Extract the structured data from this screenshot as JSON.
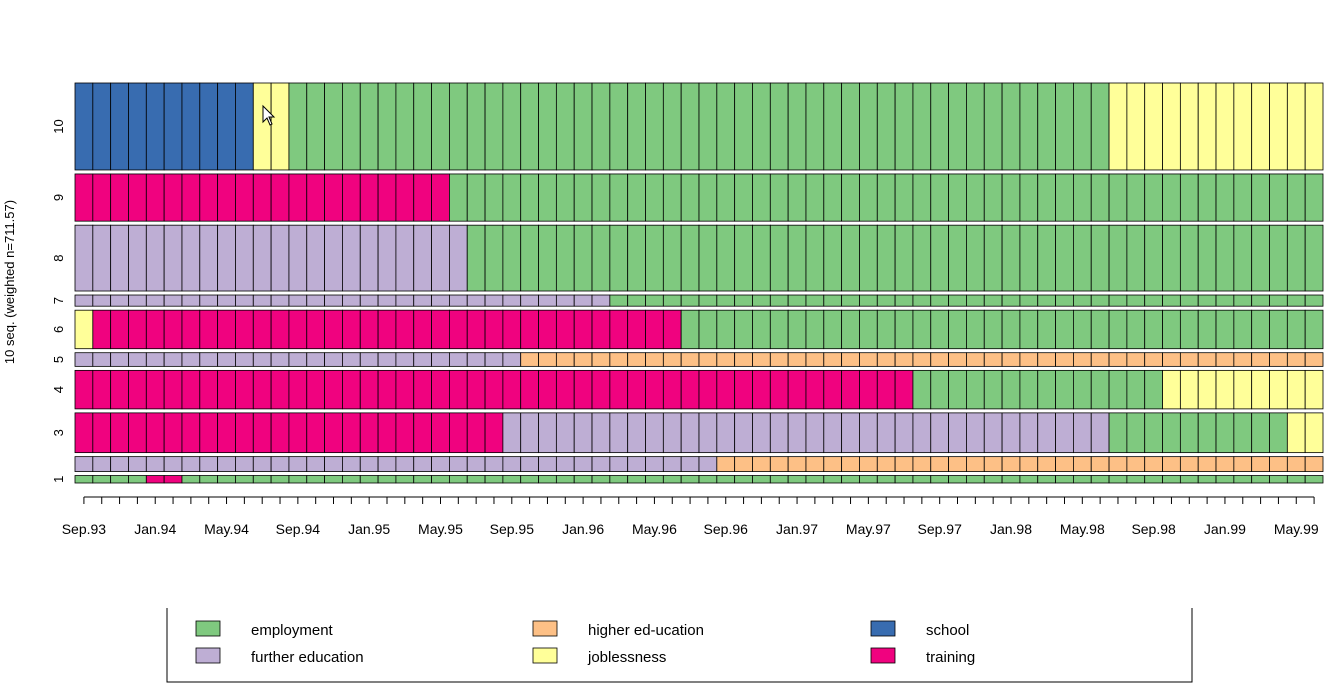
{
  "chart_data": {
    "type": "sequence-index-plot",
    "ylabel": "10 seq. (weighted n=711.57)",
    "x_tick_labels": [
      "Sep.93",
      "Jan.94",
      "May.94",
      "Sep.94",
      "Jan.95",
      "May.95",
      "Sep.95",
      "Jan.96",
      "May.96",
      "Sep.96",
      "Jan.97",
      "May.97",
      "Sep.97",
      "Jan.98",
      "May.98",
      "Sep.98",
      "Jan.99",
      "May.99"
    ],
    "n_months": 70,
    "states": [
      {
        "name": "employment",
        "color": "#7FC97F"
      },
      {
        "name": "further education",
        "color": "#BEAED4"
      },
      {
        "name": "higher ed-ucation",
        "color": "#FDC086"
      },
      {
        "name": "joblessness",
        "color": "#FFFF99"
      },
      {
        "name": "school",
        "color": "#386CB0"
      },
      {
        "name": "training",
        "color": "#F0027F"
      }
    ],
    "legend_order": [
      "employment",
      "further education",
      "higher ed-ucation",
      "joblessness",
      "school",
      "training"
    ],
    "legend_position": "bottom",
    "sequences": [
      {
        "label": "1",
        "weight": 6,
        "spells": [
          [
            "employment",
            4
          ],
          [
            "training",
            2
          ],
          [
            "employment",
            64
          ]
        ]
      },
      {
        "label": "",
        "weight": 12,
        "spells": [
          [
            "further education",
            36
          ],
          [
            "higher ed-ucation",
            34
          ]
        ]
      },
      {
        "label": "3",
        "weight": 32,
        "spells": [
          [
            "training",
            24
          ],
          [
            "further education",
            34
          ],
          [
            "employment",
            10
          ],
          [
            "joblessness",
            2
          ]
        ]
      },
      {
        "label": "4",
        "weight": 31,
        "spells": [
          [
            "training",
            47
          ],
          [
            "employment",
            14
          ],
          [
            "joblessness",
            9
          ]
        ]
      },
      {
        "label": "5",
        "weight": 11,
        "spells": [
          [
            "further education",
            25
          ],
          [
            "higher ed-ucation",
            45
          ]
        ]
      },
      {
        "label": "6",
        "weight": 31,
        "spells": [
          [
            "joblessness",
            1
          ],
          [
            "training",
            33
          ],
          [
            "employment",
            36
          ]
        ]
      },
      {
        "label": "7",
        "weight": 9,
        "spells": [
          [
            "further education",
            30
          ],
          [
            "employment",
            40
          ]
        ]
      },
      {
        "label": "8",
        "weight": 53,
        "spells": [
          [
            "further education",
            22
          ],
          [
            "employment",
            48
          ]
        ]
      },
      {
        "label": "9",
        "weight": 38,
        "spells": [
          [
            "training",
            21
          ],
          [
            "employment",
            49
          ]
        ]
      },
      {
        "label": "10",
        "weight": 70,
        "spells": [
          [
            "school",
            10
          ],
          [
            "joblessness",
            2
          ],
          [
            "employment",
            46
          ],
          [
            "joblessness",
            12
          ]
        ]
      }
    ]
  }
}
